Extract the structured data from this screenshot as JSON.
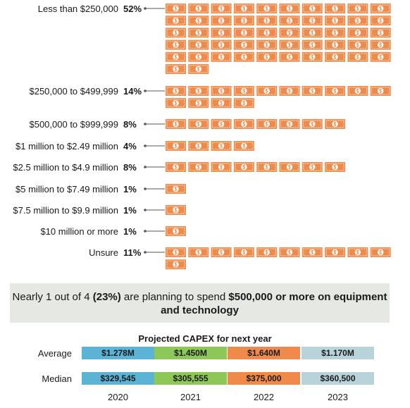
{
  "chart_data": {
    "type": "pictogram",
    "icon": "dollar-bill-icon",
    "icon_color": "#f08a4b",
    "categories": [
      {
        "label": "Less than $250,000",
        "value": "52%",
        "icons": 52
      },
      {
        "label": "$250,000 to $499,999",
        "value": "14%",
        "icons": 14
      },
      {
        "label": "$500,000 to $999,999",
        "value": "8%",
        "icons": 8
      },
      {
        "label": "$1 million to $2.49 million",
        "value": "4%",
        "icons": 4
      },
      {
        "label": "$2.5 million to $4.9 million",
        "value": "8%",
        "icons": 8
      },
      {
        "label": "$5 million to $7.49 million",
        "value": "1%",
        "icons": 1
      },
      {
        "label": "$7.5 million to $9.9 million",
        "value": "1%",
        "icons": 1
      },
      {
        "label": "$10 million or more",
        "value": "1%",
        "icons": 1
      },
      {
        "label": "Unsure",
        "value": "11%",
        "icons": 11
      }
    ]
  },
  "callout": {
    "pre": "Nearly 1 out of 4 ",
    "bold1": "(23%)",
    "mid": " are planning to spend ",
    "bold2": "$500,000 or more on equipment and technology"
  },
  "capex": {
    "title": "Projected CAPEX for next year",
    "average_label": "Average",
    "median_label": "Median",
    "years": [
      {
        "year": "2020",
        "average": "$1.278M",
        "median": "$329,545",
        "color": "#5bb3d6"
      },
      {
        "year": "2021",
        "average": "$1.450M",
        "median": "$305,555",
        "color": "#8dc757"
      },
      {
        "year": "2022",
        "average": "$1.640M",
        "median": "$375,000",
        "color": "#f08a4b"
      },
      {
        "year": "2023",
        "average": "$1.170M",
        "median": "$360,500",
        "color": "#b9d3da"
      }
    ]
  }
}
